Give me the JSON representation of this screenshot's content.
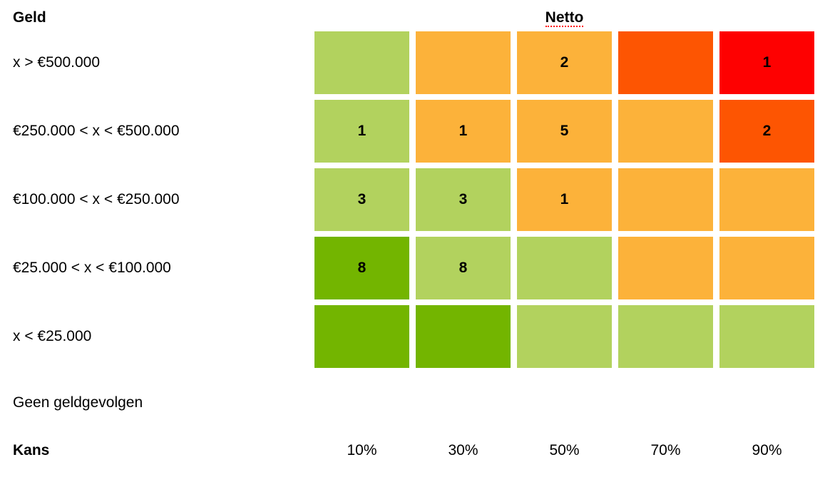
{
  "titles": {
    "left": "Geld",
    "center": "Netto"
  },
  "labels": {
    "no_consequence": "Geen geldgevolgen",
    "probability": "Kans"
  },
  "colors": {
    "light_green": "#B2D25E",
    "dark_green": "#73B500",
    "orange": "#FCB23A",
    "dark_orange": "#FD5502",
    "red": "#FE0101",
    "spellcheck_underline": "#FF0000",
    "text": "#000000",
    "background": "#FFFFFF"
  },
  "chart_data": {
    "type": "heatmap",
    "title": "Netto",
    "y_axis_title": "Geld",
    "x_axis_title": "Kans",
    "x_categories": [
      "10%",
      "30%",
      "50%",
      "70%",
      "90%"
    ],
    "y_categories": [
      "x > €500.000",
      "€250.000 < x < €500.000",
      "€100.000 < x < €250.000",
      "€25.000 < x < €100.000",
      "x < €25.000",
      "Geen geldgevolgen"
    ],
    "counts": [
      [
        null,
        null,
        2,
        null,
        1
      ],
      [
        1,
        1,
        5,
        null,
        2
      ],
      [
        3,
        3,
        1,
        null,
        null
      ],
      [
        8,
        8,
        null,
        null,
        null
      ],
      [
        null,
        null,
        null,
        null,
        null
      ]
    ],
    "rows": [
      {
        "label": "x > €500.000",
        "cells": [
          {
            "color": "light_green",
            "value": ""
          },
          {
            "color": "orange",
            "value": ""
          },
          {
            "color": "orange",
            "value": "2"
          },
          {
            "color": "dark_orange",
            "value": ""
          },
          {
            "color": "red",
            "value": "1"
          }
        ]
      },
      {
        "label": "€250.000 < x < €500.000",
        "cells": [
          {
            "color": "light_green",
            "value": "1"
          },
          {
            "color": "orange",
            "value": "1"
          },
          {
            "color": "orange",
            "value": "5"
          },
          {
            "color": "orange",
            "value": ""
          },
          {
            "color": "dark_orange",
            "value": "2"
          }
        ]
      },
      {
        "label": "€100.000 < x < €250.000",
        "cells": [
          {
            "color": "light_green",
            "value": "3"
          },
          {
            "color": "light_green",
            "value": "3"
          },
          {
            "color": "orange",
            "value": "1"
          },
          {
            "color": "orange",
            "value": ""
          },
          {
            "color": "orange",
            "value": ""
          }
        ]
      },
      {
        "label": "€25.000 < x < €100.000",
        "cells": [
          {
            "color": "dark_green",
            "value": "8"
          },
          {
            "color": "light_green",
            "value": "8"
          },
          {
            "color": "light_green",
            "value": ""
          },
          {
            "color": "orange",
            "value": ""
          },
          {
            "color": "orange",
            "value": ""
          }
        ]
      },
      {
        "label": "x < €25.000",
        "cells": [
          {
            "color": "dark_green",
            "value": ""
          },
          {
            "color": "dark_green",
            "value": ""
          },
          {
            "color": "light_green",
            "value": ""
          },
          {
            "color": "light_green",
            "value": ""
          },
          {
            "color": "light_green",
            "value": ""
          }
        ]
      }
    ],
    "legend": "none",
    "grid": "off"
  }
}
